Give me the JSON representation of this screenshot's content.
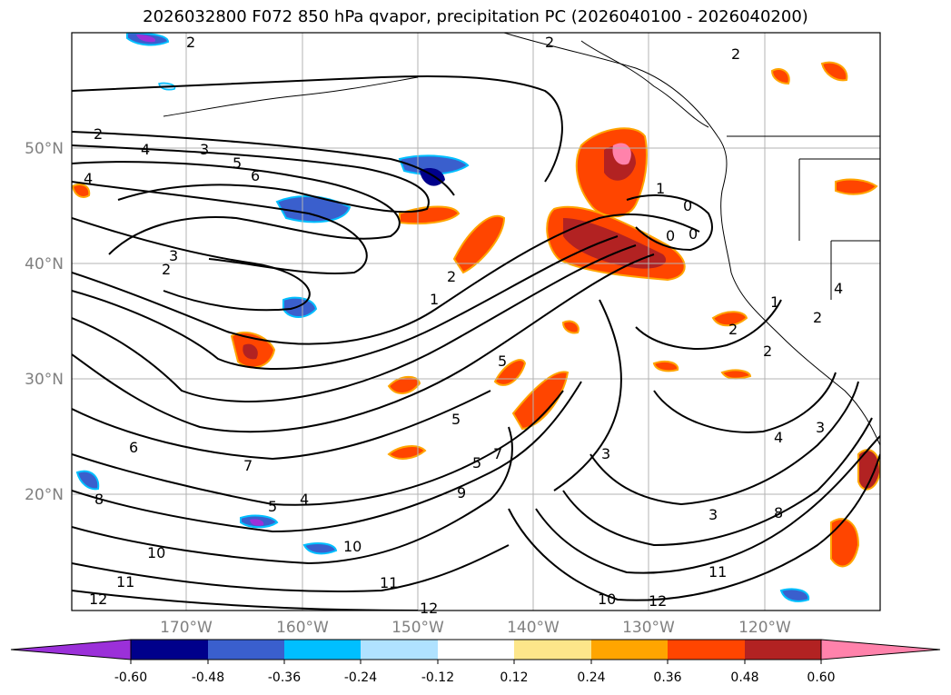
{
  "title": "2026032800 F072 850 hPa qvapor, precipitation PC (2026040100 - 2026040200)",
  "map": {
    "lat_ticks": [
      "50°N",
      "40°N",
      "30°N",
      "20°N"
    ],
    "lon_ticks": [
      "170°W",
      "160°W",
      "150°W",
      "140°W",
      "130°W",
      "120°W"
    ],
    "contour_labels": [
      "2",
      "2",
      "2",
      "2",
      "4",
      "3",
      "5",
      "6",
      "4",
      "3",
      "2",
      "1",
      "2",
      "1",
      "0",
      "0",
      "0",
      "5",
      "5",
      "5",
      "7",
      "9",
      "6",
      "7",
      "5",
      "4",
      "8",
      "10",
      "10",
      "11",
      "11",
      "12",
      "12",
      "8",
      "3",
      "3",
      "11",
      "12",
      "10",
      "2",
      "2",
      "2",
      "4",
      "3",
      "4",
      "1"
    ]
  },
  "colorbar": {
    "tick_labels": [
      "-0.60",
      "-0.48",
      "-0.36",
      "-0.24",
      "-0.12",
      "0.12",
      "0.24",
      "0.36",
      "0.48",
      "0.60"
    ],
    "colors": [
      "#9b30d9",
      "#00008b",
      "#3a5fcd",
      "#00bfff",
      "#b0e2ff",
      "#ffffff",
      "#fde68a",
      "#ffa500",
      "#ff4500",
      "#b22222",
      "#ff82ab",
      "#ff82ab"
    ]
  }
}
